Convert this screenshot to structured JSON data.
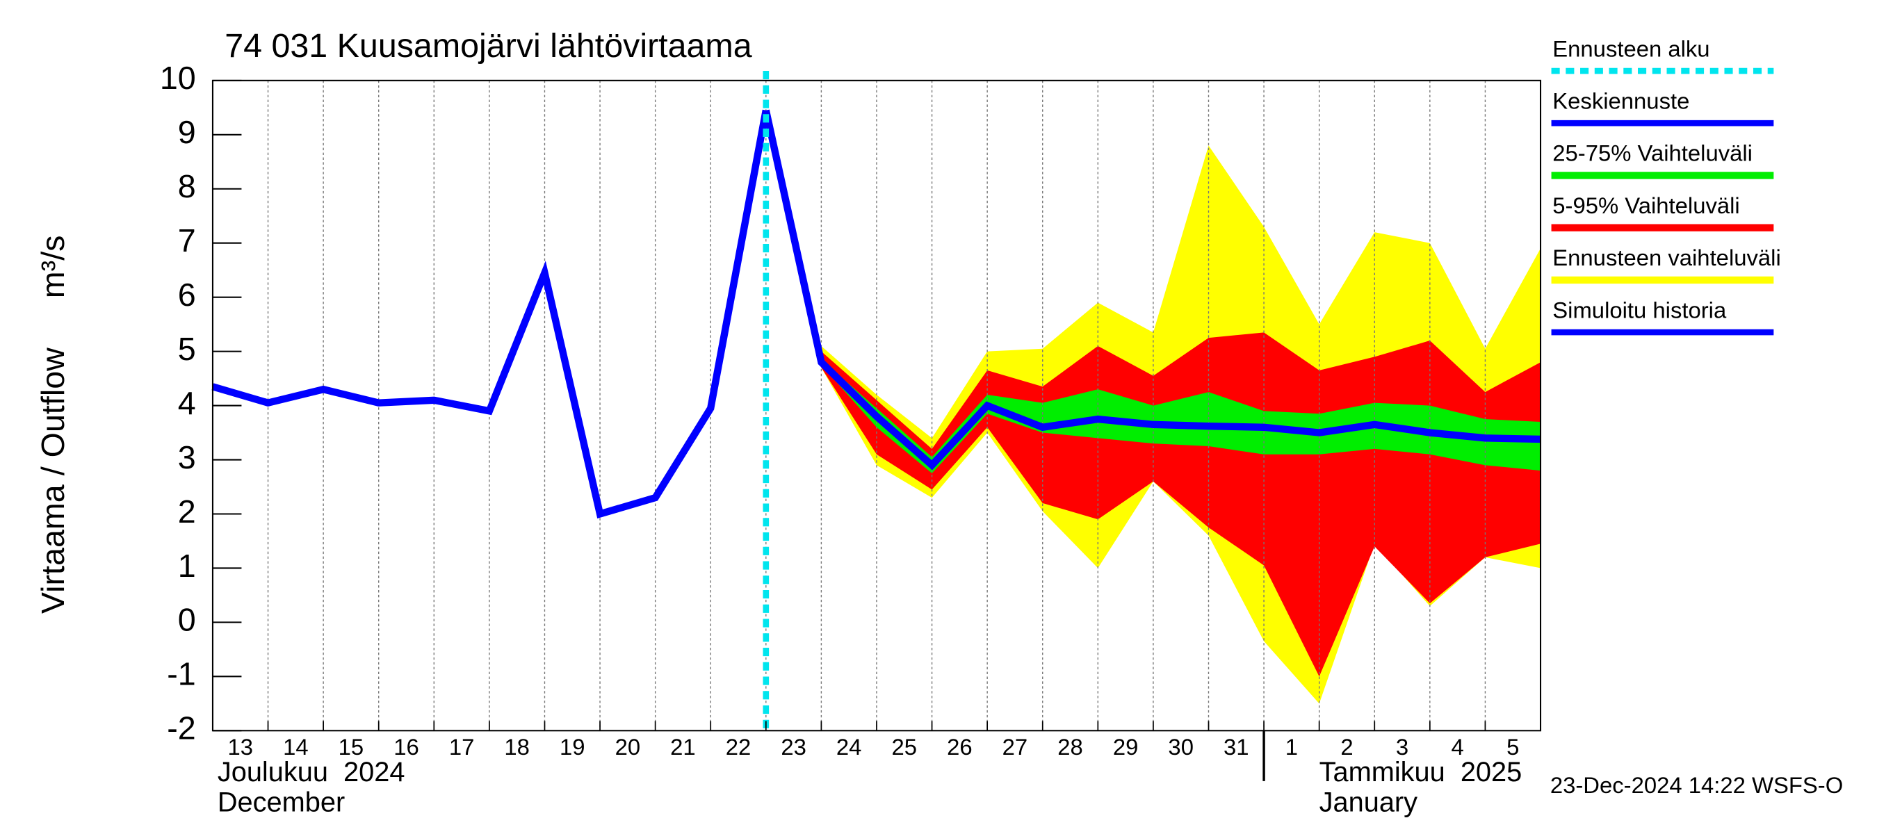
{
  "chart_data": {
    "type": "line",
    "title": "74 031 Kuusamojärvi lähtövirtaama",
    "y_label": "Virtaama / Outflow",
    "y_unit": "m³/s",
    "month_labels": [
      {
        "at": "13",
        "fi": "Joulukuu  2024",
        "en": "December"
      },
      {
        "at": "1",
        "fi": "Tammikuu  2025",
        "en": "January"
      }
    ],
    "footer": "23-Dec-2024 14:22 WSFS-O",
    "categories": [
      "13",
      "14",
      "15",
      "16",
      "17",
      "18",
      "19",
      "20",
      "21",
      "22",
      "23",
      "24",
      "25",
      "26",
      "27",
      "28",
      "29",
      "30",
      "31",
      "1",
      "2",
      "3",
      "4",
      "5",
      null
    ],
    "ylim": [
      -2,
      10
    ],
    "yticks": [
      -2,
      -1,
      0,
      1,
      2,
      3,
      4,
      5,
      6,
      7,
      8,
      9,
      10
    ],
    "grid": true,
    "series": [
      {
        "name": "Ennusteen alku",
        "kind": "vline",
        "color": "#00e5ee",
        "at": "23"
      },
      {
        "name": "Keskiennuste",
        "kind": "line",
        "color": "#0000ff",
        "values": [
          null,
          null,
          null,
          null,
          null,
          null,
          null,
          null,
          null,
          null,
          9.45,
          4.8,
          3.8,
          2.9,
          4.0,
          3.6,
          3.75,
          3.65,
          3.62,
          3.6,
          3.5,
          3.65,
          3.5,
          3.4,
          3.38
        ]
      },
      {
        "name": "25-75% Vaihteluväli",
        "kind": "band",
        "color": "#00ee00",
        "upper": [
          null,
          null,
          null,
          null,
          null,
          null,
          null,
          null,
          null,
          null,
          9.45,
          4.85,
          3.95,
          3.05,
          4.2,
          4.05,
          4.3,
          4.0,
          4.25,
          3.9,
          3.85,
          4.05,
          4.0,
          3.75,
          3.7
        ],
        "lower": [
          null,
          null,
          null,
          null,
          null,
          null,
          null,
          null,
          null,
          null,
          9.45,
          4.75,
          3.6,
          2.75,
          3.85,
          3.5,
          3.4,
          3.3,
          3.25,
          3.1,
          3.1,
          3.2,
          3.1,
          2.9,
          2.8
        ]
      },
      {
        "name": "5-95% Vaihteluväli",
        "kind": "band",
        "color": "#ff0000",
        "upper": [
          null,
          null,
          null,
          null,
          null,
          null,
          null,
          null,
          null,
          null,
          9.45,
          5.0,
          4.1,
          3.2,
          4.65,
          4.35,
          5.1,
          4.55,
          5.25,
          5.35,
          4.65,
          4.9,
          5.2,
          4.25,
          4.8
        ],
        "lower": [
          null,
          null,
          null,
          null,
          null,
          null,
          null,
          null,
          null,
          null,
          9.45,
          4.7,
          3.1,
          2.45,
          3.6,
          2.2,
          1.9,
          2.6,
          1.75,
          1.05,
          -1.0,
          1.4,
          0.35,
          1.2,
          1.45
        ]
      },
      {
        "name": "Ennusteen vaihteluväli",
        "kind": "band",
        "color": "#ffff00",
        "upper": [
          null,
          null,
          null,
          null,
          null,
          null,
          null,
          null,
          null,
          null,
          9.45,
          5.1,
          4.2,
          3.4,
          5.0,
          5.05,
          5.9,
          5.35,
          8.8,
          7.3,
          5.5,
          7.2,
          7.0,
          5.05,
          6.9
        ],
        "lower": [
          null,
          null,
          null,
          null,
          null,
          null,
          null,
          null,
          null,
          null,
          9.45,
          4.7,
          2.9,
          2.3,
          3.5,
          2.05,
          1.0,
          2.6,
          1.6,
          -0.35,
          -1.5,
          1.45,
          0.3,
          1.2,
          1.0
        ]
      },
      {
        "name": "Simuloitu historia",
        "kind": "line",
        "color": "#0000ff",
        "values": [
          4.35,
          4.05,
          4.3,
          4.05,
          4.1,
          3.9,
          6.45,
          2.0,
          2.3,
          3.95,
          9.45,
          null,
          null,
          null,
          null,
          null,
          null,
          null,
          null,
          null,
          null,
          null,
          null,
          null,
          null
        ]
      }
    ]
  }
}
